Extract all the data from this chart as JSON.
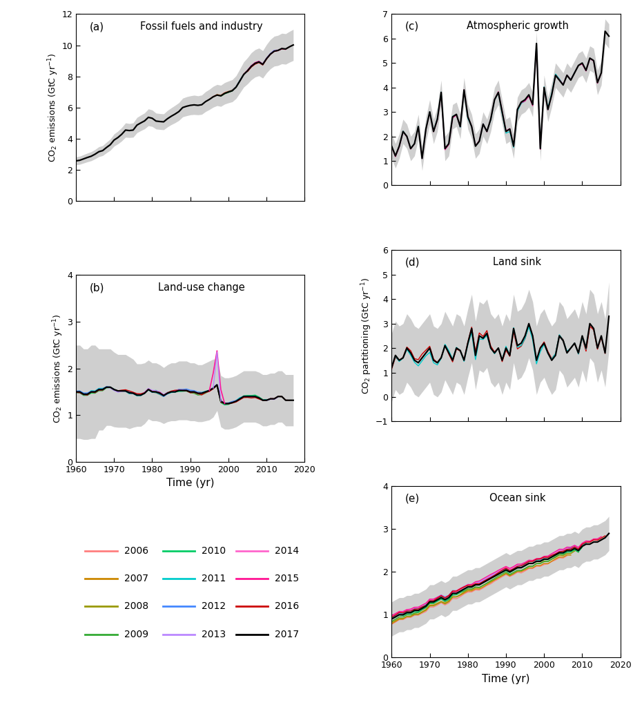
{
  "years": [
    1959,
    1960,
    1961,
    1962,
    1963,
    1964,
    1965,
    1966,
    1967,
    1968,
    1969,
    1970,
    1971,
    1972,
    1973,
    1974,
    1975,
    1976,
    1977,
    1978,
    1979,
    1980,
    1981,
    1982,
    1983,
    1984,
    1985,
    1986,
    1987,
    1988,
    1989,
    1990,
    1991,
    1992,
    1993,
    1994,
    1995,
    1996,
    1997,
    1998,
    1999,
    2000,
    2001,
    2002,
    2003,
    2004,
    2005,
    2006,
    2007,
    2008,
    2009,
    2010,
    2011,
    2012,
    2013,
    2014,
    2015,
    2016,
    2017
  ],
  "fossil_2017": [
    2.54,
    2.57,
    2.61,
    2.7,
    2.79,
    2.87,
    3.0,
    3.16,
    3.23,
    3.43,
    3.61,
    3.91,
    4.07,
    4.28,
    4.55,
    4.52,
    4.55,
    4.87,
    5.01,
    5.14,
    5.37,
    5.31,
    5.13,
    5.1,
    5.08,
    5.28,
    5.44,
    5.58,
    5.74,
    6.0,
    6.08,
    6.14,
    6.17,
    6.14,
    6.18,
    6.38,
    6.52,
    6.69,
    6.8,
    6.75,
    6.91,
    7.0,
    7.08,
    7.31,
    7.71,
    8.12,
    8.36,
    8.65,
    8.84,
    8.93,
    8.77,
    9.14,
    9.43,
    9.62,
    9.67,
    9.79,
    9.76,
    9.9,
    10.02
  ],
  "fossil_upper": [
    2.79,
    2.83,
    2.87,
    2.97,
    3.07,
    3.16,
    3.3,
    3.48,
    3.55,
    3.77,
    3.97,
    4.3,
    4.48,
    4.71,
    5.01,
    4.97,
    5.01,
    5.36,
    5.51,
    5.65,
    5.91,
    5.84,
    5.64,
    5.61,
    5.59,
    5.81,
    5.98,
    6.14,
    6.31,
    6.6,
    6.69,
    6.75,
    6.79,
    6.75,
    6.8,
    7.02,
    7.17,
    7.36,
    7.48,
    7.43,
    7.6,
    7.7,
    7.79,
    8.04,
    8.48,
    8.93,
    9.2,
    9.52,
    9.72,
    9.82,
    9.65,
    10.05,
    10.37,
    10.58,
    10.64,
    10.77,
    10.74,
    10.89,
    11.02
  ],
  "fossil_lower": [
    2.29,
    2.31,
    2.35,
    2.43,
    2.51,
    2.58,
    2.7,
    2.84,
    2.91,
    3.09,
    3.25,
    3.52,
    3.66,
    3.85,
    4.09,
    4.07,
    4.09,
    4.38,
    4.51,
    4.63,
    4.83,
    4.78,
    4.62,
    4.59,
    4.57,
    4.75,
    4.9,
    5.02,
    5.17,
    5.4,
    5.47,
    5.53,
    5.55,
    5.53,
    5.56,
    5.74,
    5.87,
    6.02,
    6.12,
    6.07,
    6.22,
    6.3,
    6.37,
    6.58,
    6.94,
    7.31,
    7.52,
    7.78,
    7.96,
    8.04,
    7.89,
    8.23,
    8.49,
    8.66,
    8.7,
    8.81,
    8.78,
    8.91,
    9.02
  ],
  "atm_2017": [
    2.0,
    1.6,
    1.2,
    1.6,
    2.2,
    2.0,
    1.5,
    1.7,
    2.4,
    1.1,
    2.3,
    3.0,
    2.2,
    2.7,
    3.8,
    1.5,
    1.7,
    2.8,
    2.9,
    2.4,
    3.9,
    2.8,
    2.4,
    1.6,
    1.8,
    2.5,
    2.2,
    2.7,
    3.5,
    3.8,
    3.0,
    2.2,
    2.3,
    1.6,
    3.1,
    3.4,
    3.5,
    3.7,
    3.3,
    5.8,
    1.5,
    4.0,
    3.1,
    3.7,
    4.5,
    4.3,
    4.1,
    4.5,
    4.3,
    4.6,
    4.9,
    5.0,
    4.7,
    5.2,
    5.1,
    4.2,
    4.6,
    6.3,
    6.1
  ],
  "atm_upper": [
    2.5,
    2.1,
    1.7,
    2.1,
    2.7,
    2.5,
    2.0,
    2.2,
    2.9,
    1.6,
    2.8,
    3.5,
    2.7,
    3.2,
    4.3,
    2.0,
    2.2,
    3.3,
    3.4,
    2.9,
    4.4,
    3.3,
    2.9,
    2.1,
    2.3,
    3.0,
    2.7,
    3.2,
    4.0,
    4.3,
    3.5,
    2.7,
    2.8,
    2.1,
    3.6,
    3.9,
    4.0,
    4.2,
    3.8,
    6.3,
    2.0,
    4.5,
    3.6,
    4.2,
    5.0,
    4.8,
    4.6,
    5.0,
    4.8,
    5.1,
    5.4,
    5.5,
    5.2,
    5.7,
    5.6,
    4.7,
    5.1,
    6.8,
    6.6
  ],
  "atm_lower": [
    1.5,
    1.1,
    0.7,
    1.1,
    1.7,
    1.5,
    1.0,
    1.2,
    1.9,
    0.6,
    1.8,
    2.5,
    1.7,
    2.2,
    3.3,
    1.0,
    1.2,
    2.3,
    2.4,
    1.9,
    3.4,
    2.3,
    1.9,
    1.1,
    1.3,
    2.0,
    1.7,
    2.2,
    3.0,
    3.3,
    2.5,
    1.7,
    1.8,
    1.1,
    2.6,
    2.9,
    3.0,
    3.2,
    2.8,
    5.3,
    1.0,
    3.5,
    2.6,
    3.2,
    4.0,
    3.8,
    3.6,
    4.0,
    3.8,
    4.1,
    4.4,
    4.5,
    4.2,
    4.7,
    4.6,
    3.7,
    4.1,
    5.8,
    5.6
  ],
  "luc_2017": [
    1.5,
    1.5,
    1.5,
    1.45,
    1.45,
    1.5,
    1.5,
    1.55,
    1.55,
    1.6,
    1.6,
    1.55,
    1.52,
    1.52,
    1.52,
    1.48,
    1.47,
    1.43,
    1.43,
    1.47,
    1.55,
    1.5,
    1.5,
    1.47,
    1.42,
    1.47,
    1.5,
    1.5,
    1.53,
    1.53,
    1.53,
    1.5,
    1.5,
    1.47,
    1.47,
    1.5,
    1.53,
    1.58,
    1.65,
    1.3,
    1.25,
    1.25,
    1.27,
    1.3,
    1.35,
    1.4,
    1.4,
    1.4,
    1.4,
    1.37,
    1.32,
    1.32,
    1.35,
    1.35,
    1.4,
    1.4,
    1.32,
    1.32,
    1.32
  ],
  "luc_upper": [
    2.5,
    2.5,
    2.5,
    2.42,
    2.42,
    2.5,
    2.5,
    2.42,
    2.42,
    2.42,
    2.42,
    2.35,
    2.3,
    2.3,
    2.3,
    2.25,
    2.2,
    2.1,
    2.1,
    2.12,
    2.18,
    2.12,
    2.12,
    2.08,
    2.02,
    2.08,
    2.12,
    2.12,
    2.16,
    2.16,
    2.16,
    2.12,
    2.12,
    2.08,
    2.08,
    2.12,
    2.16,
    2.2,
    2.2,
    1.85,
    1.8,
    1.8,
    1.82,
    1.85,
    1.9,
    1.95,
    1.95,
    1.95,
    1.95,
    1.92,
    1.87,
    1.87,
    1.9,
    1.9,
    1.95,
    1.95,
    1.87,
    1.87,
    1.87
  ],
  "luc_lower": [
    0.5,
    0.5,
    0.5,
    0.48,
    0.48,
    0.5,
    0.5,
    0.68,
    0.68,
    0.78,
    0.78,
    0.75,
    0.74,
    0.74,
    0.74,
    0.71,
    0.74,
    0.76,
    0.76,
    0.82,
    0.92,
    0.88,
    0.88,
    0.86,
    0.82,
    0.86,
    0.88,
    0.88,
    0.9,
    0.9,
    0.9,
    0.88,
    0.88,
    0.86,
    0.86,
    0.88,
    0.9,
    0.96,
    1.1,
    0.75,
    0.7,
    0.7,
    0.72,
    0.75,
    0.8,
    0.85,
    0.85,
    0.85,
    0.85,
    0.82,
    0.77,
    0.77,
    0.8,
    0.8,
    0.85,
    0.85,
    0.77,
    0.77,
    0.77
  ],
  "land_2017": [
    1.4,
    1.2,
    1.7,
    1.5,
    1.6,
    2.0,
    1.8,
    1.5,
    1.4,
    1.6,
    1.8,
    2.0,
    1.5,
    1.4,
    1.6,
    2.1,
    1.8,
    1.5,
    2.0,
    1.9,
    1.5,
    2.2,
    2.8,
    1.7,
    2.5,
    2.4,
    2.6,
    2.0,
    1.8,
    2.0,
    1.5,
    2.0,
    1.7,
    2.8,
    2.1,
    2.2,
    2.5,
    3.0,
    2.5,
    1.5,
    2.0,
    2.2,
    1.8,
    1.5,
    1.7,
    2.5,
    2.3,
    1.8,
    2.0,
    2.2,
    1.8,
    2.5,
    2.0,
    3.0,
    2.8,
    2.0,
    2.5,
    1.8,
    3.3
  ],
  "land_upper": [
    2.8,
    2.6,
    3.1,
    2.9,
    3.0,
    3.4,
    3.2,
    2.9,
    2.8,
    3.0,
    3.2,
    3.4,
    2.9,
    2.8,
    3.0,
    3.5,
    3.2,
    2.9,
    3.4,
    3.3,
    2.9,
    3.6,
    4.2,
    3.1,
    3.9,
    3.8,
    4.0,
    3.4,
    3.2,
    3.4,
    2.9,
    3.4,
    3.1,
    4.2,
    3.5,
    3.6,
    3.9,
    4.4,
    3.9,
    2.9,
    3.4,
    3.6,
    3.2,
    2.9,
    3.1,
    3.9,
    3.7,
    3.2,
    3.4,
    3.6,
    3.2,
    3.9,
    3.4,
    4.4,
    4.2,
    3.4,
    3.9,
    3.2,
    4.7
  ],
  "land_lower": [
    0.0,
    -0.2,
    0.3,
    0.1,
    0.2,
    0.6,
    0.4,
    0.1,
    0.0,
    0.2,
    0.4,
    0.6,
    0.1,
    0.0,
    0.2,
    0.7,
    0.4,
    0.1,
    0.6,
    0.5,
    0.1,
    0.8,
    1.4,
    0.3,
    1.1,
    1.0,
    1.2,
    0.6,
    0.4,
    0.6,
    0.1,
    0.6,
    0.3,
    1.4,
    0.7,
    0.8,
    1.1,
    1.6,
    1.1,
    0.1,
    0.6,
    0.8,
    0.4,
    0.1,
    0.3,
    1.1,
    0.9,
    0.4,
    0.6,
    0.8,
    0.4,
    1.1,
    0.6,
    1.6,
    1.4,
    0.6,
    1.1,
    0.4,
    1.9
  ],
  "ocean_2017": [
    0.9,
    0.9,
    0.95,
    1.0,
    1.0,
    1.05,
    1.05,
    1.1,
    1.1,
    1.15,
    1.2,
    1.3,
    1.3,
    1.35,
    1.4,
    1.35,
    1.4,
    1.5,
    1.5,
    1.55,
    1.6,
    1.65,
    1.65,
    1.7,
    1.7,
    1.75,
    1.8,
    1.85,
    1.9,
    1.95,
    2.0,
    2.05,
    2.0,
    2.05,
    2.1,
    2.1,
    2.15,
    2.2,
    2.2,
    2.25,
    2.25,
    2.3,
    2.3,
    2.35,
    2.4,
    2.45,
    2.45,
    2.5,
    2.5,
    2.55,
    2.5,
    2.6,
    2.65,
    2.65,
    2.7,
    2.7,
    2.75,
    2.8,
    2.9
  ],
  "ocean_upper": [
    1.3,
    1.3,
    1.35,
    1.4,
    1.4,
    1.45,
    1.45,
    1.5,
    1.5,
    1.55,
    1.6,
    1.7,
    1.7,
    1.75,
    1.8,
    1.75,
    1.8,
    1.9,
    1.9,
    1.95,
    2.0,
    2.05,
    2.05,
    2.1,
    2.1,
    2.15,
    2.2,
    2.25,
    2.3,
    2.35,
    2.4,
    2.45,
    2.4,
    2.45,
    2.5,
    2.5,
    2.55,
    2.6,
    2.6,
    2.65,
    2.65,
    2.7,
    2.7,
    2.75,
    2.8,
    2.85,
    2.85,
    2.9,
    2.9,
    2.95,
    2.9,
    3.0,
    3.05,
    3.05,
    3.1,
    3.1,
    3.15,
    3.2,
    3.3
  ],
  "ocean_lower": [
    0.5,
    0.5,
    0.55,
    0.6,
    0.6,
    0.65,
    0.65,
    0.7,
    0.7,
    0.75,
    0.8,
    0.9,
    0.9,
    0.95,
    1.0,
    0.95,
    1.0,
    1.1,
    1.1,
    1.15,
    1.2,
    1.25,
    1.25,
    1.3,
    1.3,
    1.35,
    1.4,
    1.45,
    1.5,
    1.55,
    1.6,
    1.65,
    1.6,
    1.65,
    1.7,
    1.7,
    1.75,
    1.8,
    1.8,
    1.85,
    1.85,
    1.9,
    1.9,
    1.95,
    2.0,
    2.05,
    2.05,
    2.1,
    2.1,
    2.15,
    2.1,
    2.2,
    2.25,
    2.25,
    2.3,
    2.3,
    2.35,
    2.4,
    2.5
  ],
  "version_colors": {
    "2006": "#ff7f7f",
    "2007": "#cc8800",
    "2008": "#999900",
    "2009": "#33aa33",
    "2010": "#00cc66",
    "2011": "#00cccc",
    "2012": "#4488ff",
    "2013": "#bb88ff",
    "2014": "#ff66cc",
    "2015": "#ff1493",
    "2016": "#cc0000",
    "2017": "#000000"
  },
  "legend_entries": [
    {
      "label": "2006",
      "color": "#ff7f7f",
      "col": 0,
      "row": 0
    },
    {
      "label": "2007",
      "color": "#cc8800",
      "col": 0,
      "row": 1
    },
    {
      "label": "2008",
      "color": "#999900",
      "col": 0,
      "row": 2
    },
    {
      "label": "2009",
      "color": "#33aa33",
      "col": 0,
      "row": 3
    },
    {
      "label": "2010",
      "color": "#00cc66",
      "col": 1,
      "row": 0
    },
    {
      "label": "2011",
      "color": "#00cccc",
      "col": 1,
      "row": 1
    },
    {
      "label": "2012",
      "color": "#4488ff",
      "col": 1,
      "row": 2
    },
    {
      "label": "2013",
      "color": "#bb88ff",
      "col": 1,
      "row": 3
    },
    {
      "label": "2014",
      "color": "#ff66cc",
      "col": 2,
      "row": 0
    },
    {
      "label": "2015",
      "color": "#ff1493",
      "col": 2,
      "row": 1
    },
    {
      "label": "2016",
      "color": "#cc0000",
      "col": 2,
      "row": 2
    },
    {
      "label": "2017",
      "color": "#000000",
      "col": 2,
      "row": 3
    }
  ],
  "gray_color": "#b0b0b0",
  "bg_color": "#ffffff",
  "panel_labels": [
    "(a)",
    "(b)",
    "(c)",
    "(d)",
    "(e)"
  ],
  "panel_titles": [
    "Fossil fuels and industry",
    "Land-use change",
    "Atmospheric growth",
    "Land sink",
    "Ocean sink"
  ],
  "ylim_a": [
    0,
    12
  ],
  "ylim_b": [
    0,
    4
  ],
  "ylim_c": [
    0,
    7
  ],
  "ylim_d": [
    -1,
    6
  ],
  "ylim_e": [
    0,
    4
  ],
  "yticks_a": [
    0,
    2,
    4,
    6,
    8,
    10,
    12
  ],
  "yticks_b": [
    0,
    1,
    2,
    3,
    4
  ],
  "yticks_c": [
    0,
    1,
    2,
    3,
    4,
    5,
    6,
    7
  ],
  "yticks_d": [
    -1,
    0,
    1,
    2,
    3,
    4,
    5,
    6
  ],
  "yticks_e": [
    0,
    1,
    2,
    3,
    4
  ],
  "xticks": [
    1960,
    1970,
    1980,
    1990,
    2000,
    2010,
    2020
  ],
  "xlabel": "Time (yr)",
  "ylabel_left": "CO$_2$ emissions (GtC yr$^{-1}$)",
  "ylabel_right": "CO$_2$ partitioning (GtC yr$^{-1}$)"
}
